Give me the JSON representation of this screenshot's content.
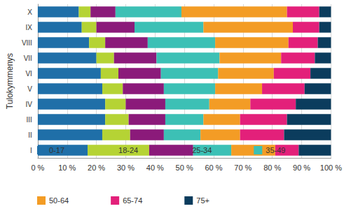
{
  "chart_data": {
    "type": "bar",
    "orientation": "horizontal",
    "stacked": true,
    "grid": true,
    "legend": "bottom",
    "y_label": "Tulokymmenys",
    "categories": [
      "I",
      "II",
      "III",
      "IV",
      "V",
      "VI",
      "VII",
      "VIII",
      "IX",
      "X"
    ],
    "xlim": [
      0,
      100
    ],
    "xticks": [
      {
        "value": 0,
        "label": "0 %"
      },
      {
        "value": 10,
        "label": "10 %"
      },
      {
        "value": 20,
        "label": "20 %"
      },
      {
        "value": 30,
        "label": "30 %"
      },
      {
        "value": 40,
        "label": "40 %"
      },
      {
        "value": 50,
        "label": "50 %"
      },
      {
        "value": 60,
        "label": "60 %"
      },
      {
        "value": 70,
        "label": "70 %"
      },
      {
        "value": 80,
        "label": "80 %"
      },
      {
        "value": 90,
        "label": "90 %"
      },
      {
        "value": 100,
        "label": "100 %"
      }
    ],
    "series": [
      {
        "name": "0-17",
        "color": "#1f6fa8",
        "values": [
          17,
          22,
          23,
          23,
          22,
          21.5,
          20,
          17.5,
          15,
          14
        ]
      },
      {
        "name": "18-24",
        "color": "#b5d334",
        "values": [
          21,
          9.5,
          8,
          7,
          7,
          6,
          6,
          5.5,
          5,
          4
        ]
      },
      {
        "name": "25-34",
        "color": "#8b1a7a",
        "values": [
          15,
          11.5,
          12.5,
          13.5,
          14,
          14.5,
          14.5,
          14.5,
          13,
          8.5
        ]
      },
      {
        "name": "35-49",
        "color": "#3cc0b5",
        "values": [
          13,
          12.5,
          13,
          15,
          17.5,
          19.5,
          21.5,
          23,
          23.5,
          22.5
        ]
      },
      {
        "name": "50-64",
        "color": "#f39c25",
        "values": [
          15,
          13.5,
          12.5,
          14,
          16,
          19,
          21,
          25,
          30.5,
          36
        ]
      },
      {
        "name": "65-74",
        "color": "#e3207a",
        "values": [
          8,
          15,
          16,
          15.5,
          14.5,
          12.5,
          11.5,
          10,
          9,
          11
        ]
      },
      {
        "name": "75+",
        "color": "#0b3c5d",
        "values": [
          11,
          16,
          15,
          12,
          9,
          7,
          5.5,
          4.5,
          4,
          4
        ]
      }
    ]
  }
}
